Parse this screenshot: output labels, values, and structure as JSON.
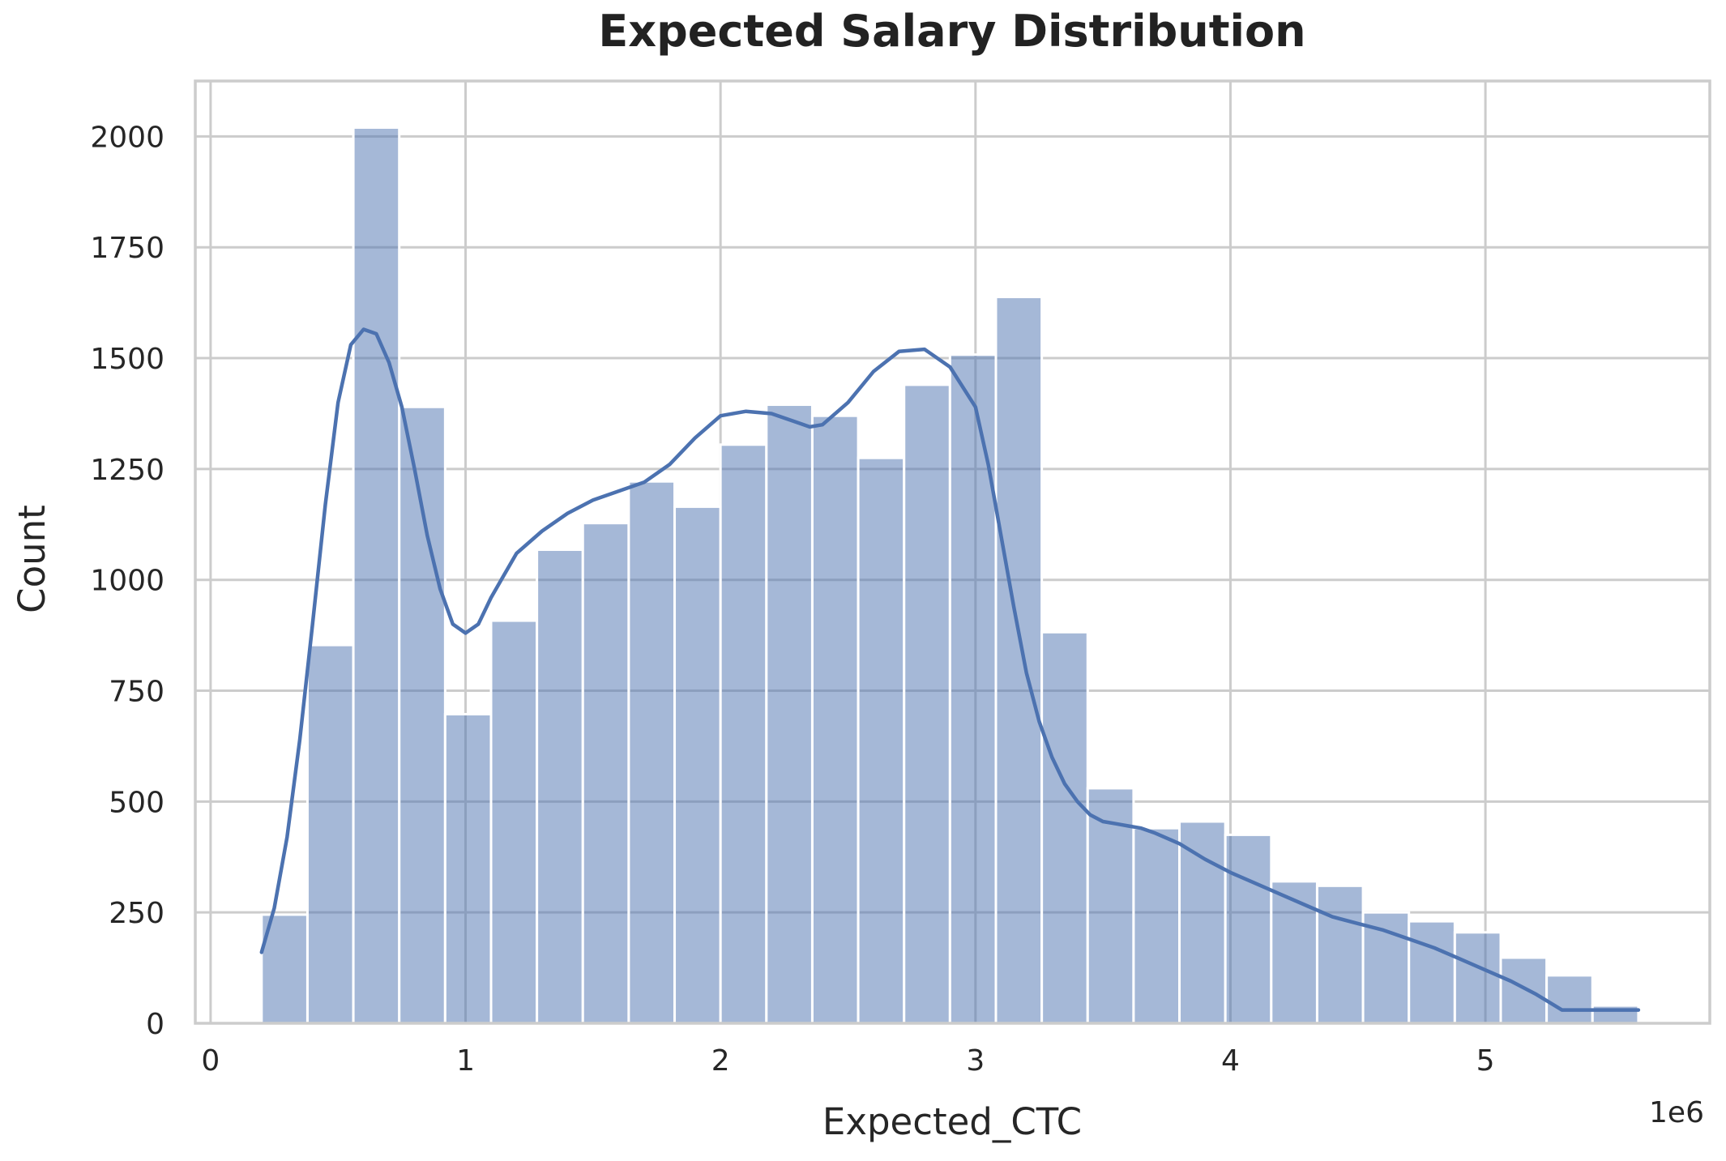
{
  "chart_data": {
    "type": "bar",
    "title": "Expected Salary Distribution",
    "xlabel": "Expected_CTC",
    "ylabel": "Count",
    "x_offset_label": "1e6",
    "xlim": [
      -0.06,
      5.88
    ],
    "ylim": [
      0,
      2125
    ],
    "xticks": [
      0,
      1,
      2,
      3,
      4,
      5
    ],
    "yticks": [
      0,
      250,
      500,
      750,
      1000,
      1250,
      1500,
      1750,
      2000
    ],
    "grid": true,
    "bin_edges": [
      0.2,
      0.38,
      0.56,
      0.74,
      0.92,
      1.1,
      1.28,
      1.46,
      1.64,
      1.82,
      2.0,
      2.18,
      2.36,
      2.54,
      2.72,
      2.9,
      3.08,
      3.26,
      3.44,
      3.62,
      3.8,
      3.98,
      4.16,
      4.34,
      4.52,
      4.7,
      4.88,
      5.06,
      5.24,
      5.42,
      5.6
    ],
    "counts": [
      245,
      853,
      2020,
      1390,
      697,
      908,
      1068,
      1128,
      1222,
      1165,
      1305,
      1395,
      1370,
      1275,
      1440,
      1508,
      1638,
      882,
      530,
      440,
      455,
      425,
      320,
      310,
      250,
      230,
      205,
      148,
      108,
      40
    ],
    "kde": {
      "x": [
        0.2,
        0.25,
        0.3,
        0.35,
        0.4,
        0.45,
        0.5,
        0.55,
        0.6,
        0.65,
        0.7,
        0.75,
        0.8,
        0.85,
        0.9,
        0.95,
        1.0,
        1.05,
        1.1,
        1.15,
        1.2,
        1.3,
        1.4,
        1.5,
        1.6,
        1.7,
        1.8,
        1.9,
        2.0,
        2.1,
        2.2,
        2.3,
        2.35,
        2.4,
        2.5,
        2.6,
        2.7,
        2.8,
        2.9,
        3.0,
        3.05,
        3.1,
        3.15,
        3.2,
        3.25,
        3.3,
        3.35,
        3.4,
        3.45,
        3.5,
        3.55,
        3.6,
        3.65,
        3.7,
        3.8,
        3.9,
        4.0,
        4.1,
        4.2,
        4.3,
        4.4,
        4.5,
        4.6,
        4.7,
        4.8,
        4.9,
        5.0,
        5.1,
        5.2,
        5.3,
        5.4,
        5.5,
        5.6
      ],
      "y": [
        160,
        260,
        420,
        640,
        900,
        1170,
        1400,
        1530,
        1565,
        1555,
        1490,
        1390,
        1250,
        1100,
        980,
        900,
        880,
        900,
        960,
        1010,
        1060,
        1110,
        1150,
        1180,
        1200,
        1220,
        1260,
        1320,
        1370,
        1380,
        1375,
        1355,
        1345,
        1350,
        1400,
        1470,
        1515,
        1520,
        1480,
        1390,
        1260,
        1100,
        940,
        790,
        680,
        600,
        540,
        500,
        470,
        455,
        450,
        445,
        440,
        430,
        405,
        370,
        340,
        315,
        290,
        265,
        240,
        225,
        210,
        190,
        170,
        145,
        120,
        95,
        65,
        30,
        30,
        30,
        30
      ]
    },
    "colors": {
      "bar_fill": "#4c72b0",
      "bar_opacity": 0.5,
      "kde_line": "#4c72b0",
      "grid": "#cccccc",
      "spine": "#cccccc",
      "background": "#ffffff"
    }
  }
}
